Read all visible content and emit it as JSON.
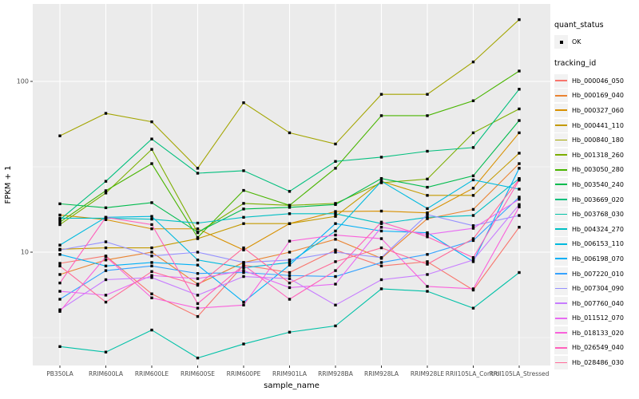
{
  "figure": {
    "background": "#FFFFFF",
    "panel_background": "#EBEBEB",
    "grid_color": "#FFFFFF",
    "point_color": "#000000",
    "tick_label_color": "#4D4D4D"
  },
  "legend": {
    "quant_status": {
      "title": "quant_status",
      "items": [
        {
          "label": "OK",
          "marker": "black-point"
        }
      ]
    },
    "tracking_id": {
      "title": "tracking_id"
    }
  },
  "axes": {
    "y": {
      "title": "FPKM + 1",
      "scale": "log10",
      "tick_labels": [
        "100",
        "10"
      ],
      "tick_values": [
        100,
        10
      ],
      "minor_values": [
        31.623,
        3.1623
      ]
    },
    "x": {
      "title": "sample_name"
    }
  },
  "chart_data": {
    "type": "line",
    "title": "",
    "xlabel": "sample_name",
    "ylabel": "FPKM + 1",
    "yscale": "log10",
    "ylim": [
      2,
      280
    ],
    "grid": true,
    "legend_position": "right",
    "categories": [
      "PB350LA",
      "RRIM600LA",
      "RRIM600LE",
      "RRIM600SE",
      "RRIM600PE",
      "RRIM901LA",
      "RRIM928BA",
      "RRIM928LA",
      "RRIM928LE",
      "RRII105LA_Control",
      "RRII105LA_Stressed"
    ],
    "series": [
      {
        "name": "Hb_000046_050",
        "color": "#F8766D",
        "values": [
          8.6,
          9.5,
          5.7,
          4.2,
          8.4,
          7.6,
          10.3,
          8.3,
          8.8,
          6.0,
          14
        ]
      },
      {
        "name": "Hb_000169_040",
        "color": "#EA8331",
        "values": [
          7.4,
          9.0,
          10.0,
          6.5,
          8.7,
          10.0,
          11.9,
          9.2,
          15.7,
          17.8,
          33
        ]
      },
      {
        "name": "Hb_000327_060",
        "color": "#D89000",
        "values": [
          16.5,
          15.5,
          13.7,
          13.7,
          10.3,
          14.7,
          17.3,
          17.4,
          17.0,
          23.7,
          50
        ]
      },
      {
        "name": "Hb_000441_110",
        "color": "#C49A00",
        "values": [
          10.4,
          10.6,
          10.6,
          12.0,
          14.7,
          14.7,
          16.2,
          26.0,
          21.5,
          21.5,
          38
        ]
      },
      {
        "name": "Hb_000840_180",
        "color": "#A3A500",
        "values": [
          48,
          65,
          58,
          31,
          75,
          50,
          43,
          84,
          84,
          130,
          230
        ]
      },
      {
        "name": "Hb_001318_260",
        "color": "#7CAE00",
        "values": [
          14.5,
          22.2,
          40,
          13.0,
          19.3,
          18.8,
          19.3,
          25.5,
          26.8,
          50,
          69
        ]
      },
      {
        "name": "Hb_003050_280",
        "color": "#49B500",
        "values": [
          15.0,
          22.9,
          33,
          12.2,
          23,
          18.8,
          31,
          63,
          63,
          77,
          115
        ]
      },
      {
        "name": "Hb_003540_240",
        "color": "#00BB4E",
        "values": [
          19.2,
          18.2,
          19.5,
          13.1,
          17.9,
          18.3,
          19.0,
          27,
          24,
          28,
          59
        ]
      },
      {
        "name": "Hb_003669_020",
        "color": "#00BF7D",
        "values": [
          15.5,
          26,
          46,
          29,
          30,
          22.7,
          34,
          36,
          39,
          41,
          90
        ]
      },
      {
        "name": "Hb_003768_030",
        "color": "#00C1A7",
        "values": [
          2.8,
          2.6,
          3.5,
          2.4,
          2.9,
          3.4,
          3.7,
          6.1,
          5.9,
          4.7,
          7.6
        ]
      },
      {
        "name": "Hb_004324_270",
        "color": "#00BFC4",
        "values": [
          15.8,
          15.8,
          15.6,
          14.8,
          16.0,
          16.8,
          16.8,
          14.7,
          16.0,
          16.4,
          27
        ]
      },
      {
        "name": "Hb_006153_110",
        "color": "#00BADE",
        "values": [
          11.0,
          16.0,
          16.2,
          9.0,
          8.1,
          8.7,
          13.3,
          26,
          18,
          26.5,
          23.4
        ]
      },
      {
        "name": "Hb_006198_070",
        "color": "#00B0F6",
        "values": [
          9.7,
          8.3,
          8.7,
          8.4,
          5.1,
          8.4,
          14.7,
          13.3,
          13.0,
          8.8,
          31
        ]
      },
      {
        "name": "Hb_007220_010",
        "color": "#35A2FF",
        "values": [
          5.3,
          7.8,
          8.3,
          7.5,
          7.6,
          7.3,
          7.2,
          8.7,
          9.7,
          11.7,
          21
        ]
      },
      {
        "name": "Hb_007304_090",
        "color": "#9590FF",
        "values": [
          10.3,
          11.5,
          9.5,
          10.0,
          8.7,
          9.0,
          10.0,
          9.3,
          16.6,
          14.3,
          16.4
        ]
      },
      {
        "name": "Hb_007760_040",
        "color": "#C77CFF",
        "values": [
          4.6,
          6.9,
          7.1,
          5.6,
          7.2,
          7.0,
          4.9,
          6.9,
          7.4,
          9.0,
          19
        ]
      },
      {
        "name": "Hb_011512_070",
        "color": "#E76BF3",
        "values": [
          5.9,
          5.6,
          7.3,
          7.0,
          7.8,
          6.2,
          6.5,
          14.0,
          12.7,
          13.8,
          20.4
        ]
      },
      {
        "name": "Hb_018133_020",
        "color": "#FA62DB",
        "values": [
          4.5,
          9.4,
          5.4,
          4.7,
          4.9,
          11.6,
          12.6,
          12.0,
          6.3,
          6.1,
          18.4
        ]
      },
      {
        "name": "Hb_026549_040",
        "color": "#FF62BC",
        "values": [
          6.6,
          16.0,
          14.5,
          5.0,
          8.4,
          5.3,
          7.8,
          15.0,
          12.3,
          9.3,
          26.4
        ]
      },
      {
        "name": "Hb_028486_030",
        "color": "#FF6A98",
        "values": [
          8.3,
          5.1,
          7.7,
          6.4,
          10.6,
          6.6,
          8.8,
          10.6,
          8.5,
          12.0,
          26.7
        ]
      }
    ]
  }
}
